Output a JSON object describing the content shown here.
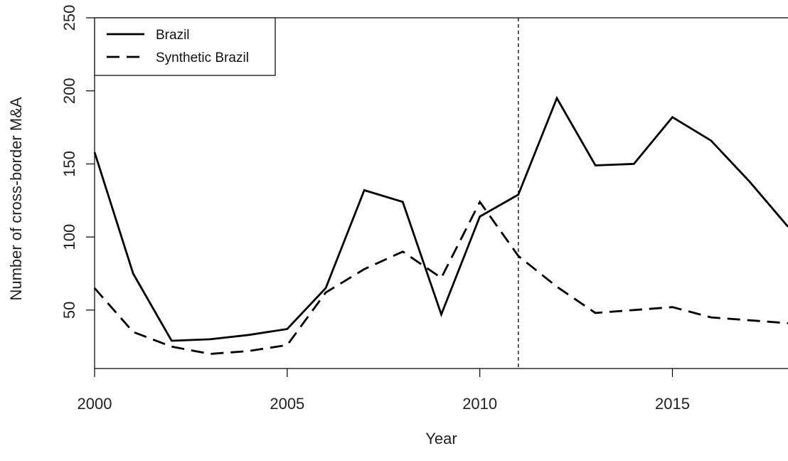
{
  "chart_data": {
    "type": "line",
    "title": "",
    "xlabel": "Year",
    "ylabel": "Number of cross-border M&A",
    "xlim": [
      2000,
      2018
    ],
    "ylim": [
      10,
      250
    ],
    "x_ticks": [
      "2000",
      "2005",
      "2010",
      "2015"
    ],
    "y_ticks": [
      "50",
      "100",
      "150",
      "200",
      "250"
    ],
    "grid": false,
    "legend_position": "top-left",
    "vertical_reference_line": {
      "x": 2011,
      "style": "dashed"
    },
    "x": [
      2000,
      2001,
      2002,
      2003,
      2004,
      2005,
      2006,
      2007,
      2008,
      2009,
      2010,
      2011,
      2012,
      2013,
      2014,
      2015,
      2016,
      2017,
      2018
    ],
    "series": [
      {
        "name": "Brazil",
        "style": "solid",
        "color": "#000000",
        "values": [
          158,
          75,
          29,
          30,
          33,
          37,
          65,
          132,
          124,
          47,
          114,
          129,
          195,
          149,
          150,
          182,
          166,
          138,
          107
        ]
      },
      {
        "name": "Synthetic Brazil",
        "style": "dashed",
        "color": "#000000",
        "values": [
          65,
          35,
          25,
          20,
          22,
          26,
          62,
          78,
          90,
          72,
          124,
          87,
          66,
          48,
          50,
          52,
          45,
          43,
          41
        ]
      }
    ]
  }
}
